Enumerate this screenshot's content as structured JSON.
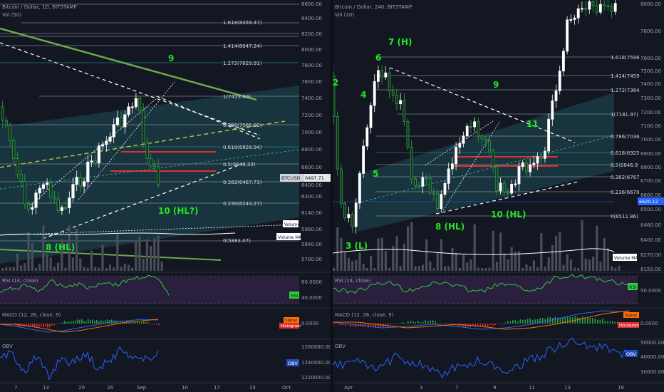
{
  "left": {
    "title": "Bitcoin / Dollar, 1D, BITSTAMP",
    "vol": "Vol (50)",
    "price_ticks": [
      "8600.00",
      "8400.00",
      "8200.00",
      "8000.00",
      "7800.00",
      "7600.00",
      "7400.00",
      "7200.00",
      "7000.00",
      "6800.00",
      "6600.00",
      "6400.00",
      "6300.00",
      "6140.00",
      "5980.00",
      "5840.00",
      "5700.00"
    ],
    "fibs": [
      "1.618(8359.47)",
      "1.414(8047.24)",
      "1.272(7829.91)",
      "1(7413.60)",
      "0.786(7086.02)",
      "0.618(6828.94)",
      "0.5(6648.33)",
      "0.382(6467.73)",
      "0.236(6244.27)",
      "0(5883.07)"
    ],
    "waves": [
      "9",
      "10 (HL?)",
      "8 (HL)"
    ],
    "price_tag": "BTCUSD",
    "price_value": "6497.71",
    "volume_tag": "Volume",
    "volume_ma_tag": "Volume MA",
    "rsi": {
      "label": "RSI (14, close)",
      "tag": "RSI",
      "ticks": [
        "60.0000",
        "40.0000"
      ]
    },
    "macd": {
      "label": "MACD (12, 26, close, 9)",
      "tags": [
        "Signal",
        "Histogram"
      ],
      "ticks": [
        "0.0000"
      ]
    },
    "obv": {
      "label": "OBV",
      "tag": "OBV",
      "ticks": [
        "1260000.0000",
        "1240000.0000",
        "1220000.0000"
      ]
    },
    "dates": [
      "7",
      "13",
      "20",
      "26",
      "Sep",
      "10",
      "17",
      "24",
      "Oct"
    ]
  },
  "right": {
    "title": "Bitcoin / Dollar, 240, BITSTAMP",
    "vol": "Vol (20)",
    "price_ticks": [
      "8000.00",
      "7800.00",
      "7600.00",
      "7500.00",
      "7400.00",
      "7300.00",
      "7200.00",
      "7100.00",
      "7000.00",
      "6900.00",
      "6800.00",
      "6700.00",
      "6600.00",
      "6500.00",
      "6460.00",
      "6400.00",
      "6270.00",
      "6150.00"
    ],
    "fibs": [
      "1.618(7596",
      "1.414(7459",
      "1.272(7364",
      "1(7181.97)",
      "0.786(7036",
      "0.618(6925",
      "0.5(6846.9",
      "0.382(6767",
      "0.236(6670",
      "0(6511.86)"
    ],
    "waves": [
      "7 (H)",
      "6",
      "4",
      "2",
      "9",
      "11",
      "5",
      "8 (HL)",
      "10 (HL)",
      "3 (L)"
    ],
    "price_value": "6620.12",
    "volume_ma_tag": "Volume MA",
    "rsi": {
      "label": "RSI (14, close)",
      "tag": "RSI",
      "ticks": [
        "50.0000"
      ]
    },
    "macd": {
      "label": "MACD (12, 26, close, 9)",
      "tags": [
        "Signal",
        "Histogram"
      ],
      "ticks": [
        "0.0000"
      ]
    },
    "obv": {
      "label": "OBV",
      "tag": "OBV",
      "ticks": [
        "50000.0000",
        "40000.0000",
        "30000.0000"
      ]
    },
    "dates": [
      "Apr",
      "3",
      "7",
      "9",
      "11",
      "13",
      "16"
    ]
  }
}
